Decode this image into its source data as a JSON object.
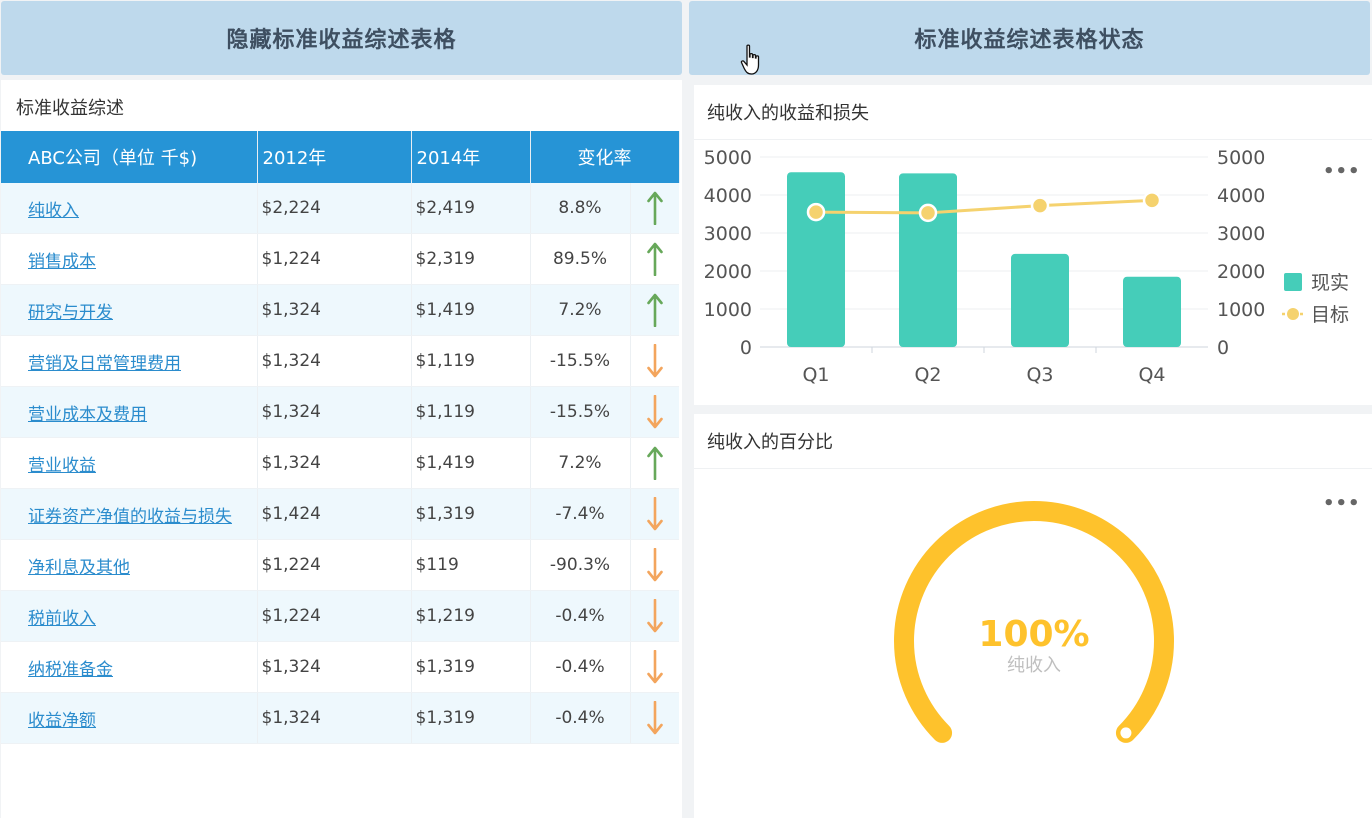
{
  "buttons": {
    "hide_table": "隐藏标准收益综述表格",
    "table_status": "标准收益综述表格状态"
  },
  "table": {
    "title": "标准收益综述",
    "headers": [
      "ABC公司（单位 千$)",
      "2012年",
      "2014年",
      "变化率"
    ],
    "rows": [
      {
        "name": "纯收入",
        "y2012": "$2,224",
        "y2014": "$2,419",
        "change": "8.8%",
        "trend": "up"
      },
      {
        "name": "销售成本",
        "y2012": "$1,224",
        "y2014": "$2,319",
        "change": "89.5%",
        "trend": "up"
      },
      {
        "name": "研究与开发",
        "y2012": "$1,324",
        "y2014": "$1,419",
        "change": "7.2%",
        "trend": "up"
      },
      {
        "name": "营销及日常管理费用",
        "y2012": "$1,324",
        "y2014": "$1,119",
        "change": "-15.5%",
        "trend": "down"
      },
      {
        "name": "营业成本及费用",
        "y2012": "$1,324",
        "y2014": "$1,119",
        "change": "-15.5%",
        "trend": "down"
      },
      {
        "name": "营业收益",
        "y2012": "$1,324",
        "y2014": "$1,419",
        "change": "7.2%",
        "trend": "up"
      },
      {
        "name": "证券资产净值的收益与损失",
        "y2012": "$1,424",
        "y2014": "$1,319",
        "change": "-7.4%",
        "trend": "down"
      },
      {
        "name": "净利息及其他",
        "y2012": "$1,224",
        "y2014": "$119",
        "change": "-90.3%",
        "trend": "down"
      },
      {
        "name": "税前收入",
        "y2012": "$1,224",
        "y2014": "$1,219",
        "change": "-0.4%",
        "trend": "down"
      },
      {
        "name": "纳税准备金",
        "y2012": "$1,324",
        "y2014": "$1,319",
        "change": "-0.4%",
        "trend": "down"
      },
      {
        "name": "收益净额",
        "y2012": "$1,324",
        "y2014": "$1,319",
        "change": "-0.4%",
        "trend": "down"
      }
    ]
  },
  "colors": {
    "up_arrow": "#67a85a",
    "down_arrow": "#f3a55d",
    "bar": "#45cdb9",
    "target": "#f5d26e",
    "gauge": "#fec22c"
  },
  "bar_card": {
    "title": "纯收入的收益和损失",
    "more": "•••"
  },
  "gauge_card": {
    "title": "纯收入的百分比",
    "more": "•••",
    "value_label": "100%",
    "sub_label": "纯收入",
    "value": 1.0
  },
  "chart_data": [
    {
      "type": "bar",
      "title": "纯收入的收益和损失",
      "categories": [
        "Q1",
        "Q2",
        "Q3",
        "Q4"
      ],
      "series": [
        {
          "name": "现实",
          "type": "bar",
          "values": [
            4600,
            4570,
            2450,
            1850
          ]
        },
        {
          "name": "目标",
          "type": "line",
          "values": [
            3550,
            3530,
            3720,
            3860
          ]
        }
      ],
      "ylim": [
        0,
        5000
      ],
      "yticks": [
        0,
        1000,
        2000,
        3000,
        4000,
        5000
      ],
      "y2lim": [
        0,
        5000
      ],
      "y2ticks": [
        0,
        1000,
        2000,
        3000,
        4000,
        5000
      ],
      "legend": "right",
      "grid": true
    },
    {
      "type": "gauge",
      "title": "纯收入的百分比",
      "value": 1.0,
      "label": "100%",
      "sub_label": "纯收入"
    }
  ]
}
